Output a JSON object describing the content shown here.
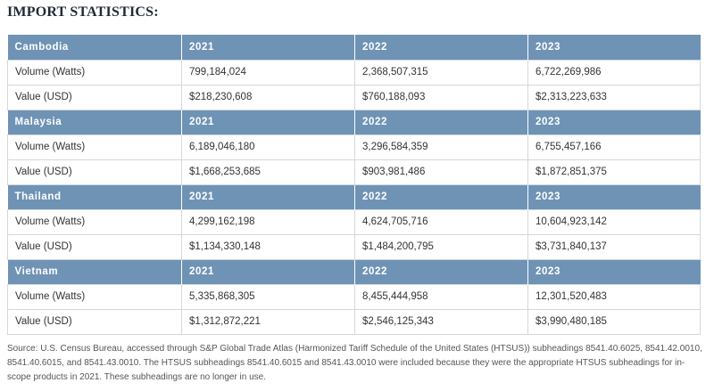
{
  "heading": "IMPORT STATISTICS:",
  "years": [
    "2021",
    "2022",
    "2023"
  ],
  "countries": [
    {
      "name": "Cambodia",
      "rows": [
        {
          "label": "Volume (Watts)",
          "values": [
            "799,184,024",
            "2,368,507,315",
            "6,722,269,986"
          ]
        },
        {
          "label": "Value (USD)",
          "values": [
            "$218,230,608",
            "$760,188,093",
            "$2,313,223,633"
          ]
        }
      ]
    },
    {
      "name": "Malaysia",
      "rows": [
        {
          "label": "Volume (Watts)",
          "values": [
            "6,189,046,180",
            "3,296,584,359",
            "6,755,457,166"
          ]
        },
        {
          "label": "Value (USD)",
          "values": [
            "$1,668,253,685",
            "$903,981,486",
            "$1,872,851,375"
          ]
        }
      ]
    },
    {
      "name": "Thailand",
      "rows": [
        {
          "label": "Volume (Watts)",
          "values": [
            "4,299,162,198",
            "4,624,705,716",
            "10,604,923,142"
          ]
        },
        {
          "label": "Value (USD)",
          "values": [
            "$1,134,330,148",
            "$1,484,200,795",
            "$3,731,840,137"
          ]
        }
      ]
    },
    {
      "name": "Vietnam",
      "rows": [
        {
          "label": "Volume (Watts)",
          "values": [
            "5,335,868,305",
            "8,455,444,958",
            "12,301,520,483"
          ]
        },
        {
          "label": "Value (USD)",
          "values": [
            "$1,312,872,221",
            "$2,546,125,343",
            "$3,990,480,185"
          ]
        }
      ]
    }
  ],
  "source_note": "Source: U.S. Census Bureau, accessed through S&P Global Trade Atlas (Harmonized Tariff Schedule of the United States (HTSUS)) subheadings 8541.40.6025, 8541.42.0010, 8541.40.6015, and 8541.43.0010. The HTSUS subheadings 8541.40.6015 and 8541.43.0010 were included because they were the appropriate HTSUS subheadings for in-scope products in 2021. These subheadings are no longer in use.",
  "colors": {
    "header_bg": "#6f93b5",
    "header_text": "#ffffff",
    "border": "#d3d8de"
  }
}
